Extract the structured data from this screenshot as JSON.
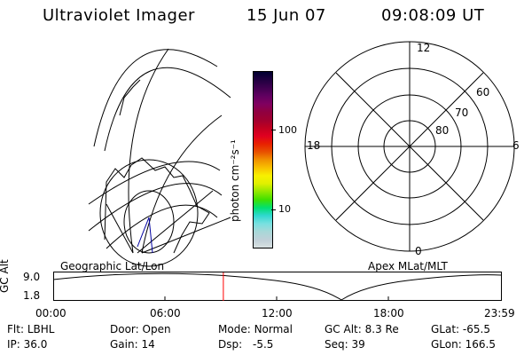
{
  "header": {
    "instrument": "Ultraviolet Imager",
    "date": "15 Jun 07",
    "time": "09:08:09 UT"
  },
  "colorbar": {
    "unit_label": "photon cm⁻²s⁻¹",
    "tick_100": "100",
    "tick_10": "10",
    "colors": [
      "#d8e0e0",
      "#c0d0d8",
      "#a8d8d8",
      "#78e0e0",
      "#30d8d0",
      "#00e070",
      "#40e000",
      "#90e800",
      "#e0f000",
      "#f8f000",
      "#f8c000",
      "#f09000",
      "#e85000",
      "#e82000",
      "#e00020",
      "#c00020",
      "#a00030",
      "#900040",
      "#800060",
      "#600060",
      "#400050",
      "#200040",
      "#000030"
    ]
  },
  "left_panel": {
    "label": "Geographic Lat/Lon"
  },
  "right_panel": {
    "label": "Apex MLat/MLT",
    "mlt_12": "12",
    "mlt_18": "18",
    "mlt_6": "6",
    "mlt_0": "0",
    "lat_60": "60",
    "lat_70": "70",
    "lat_80": "80"
  },
  "timeline": {
    "ylabel": "GC Alt",
    "y_top": "9.0",
    "y_bottom": "1.8",
    "ticks": [
      "00:00",
      "06:00",
      "12:00",
      "18:00",
      "23:59"
    ],
    "current_time_fraction": 0.38
  },
  "info": {
    "flt_label": "Flt:",
    "flt_value": "LBHL",
    "ip_label": "IP:",
    "ip_value": "36.0",
    "door_label": "Door:",
    "door_value": "Open",
    "gain_label": "Gain:",
    "gain_value": "14",
    "mode_label": "Mode:",
    "mode_value": "Normal",
    "dsp_label": "Dsp:",
    "dsp_value": "-5.5",
    "gcalt_label": "GC Alt:",
    "gcalt_value": "8.3 Re",
    "seq_label": "Seq:",
    "seq_value": "39",
    "glat_label": "GLat:",
    "glat_value": "-65.5",
    "glon_label": "GLon:",
    "glon_value": "166.5"
  }
}
